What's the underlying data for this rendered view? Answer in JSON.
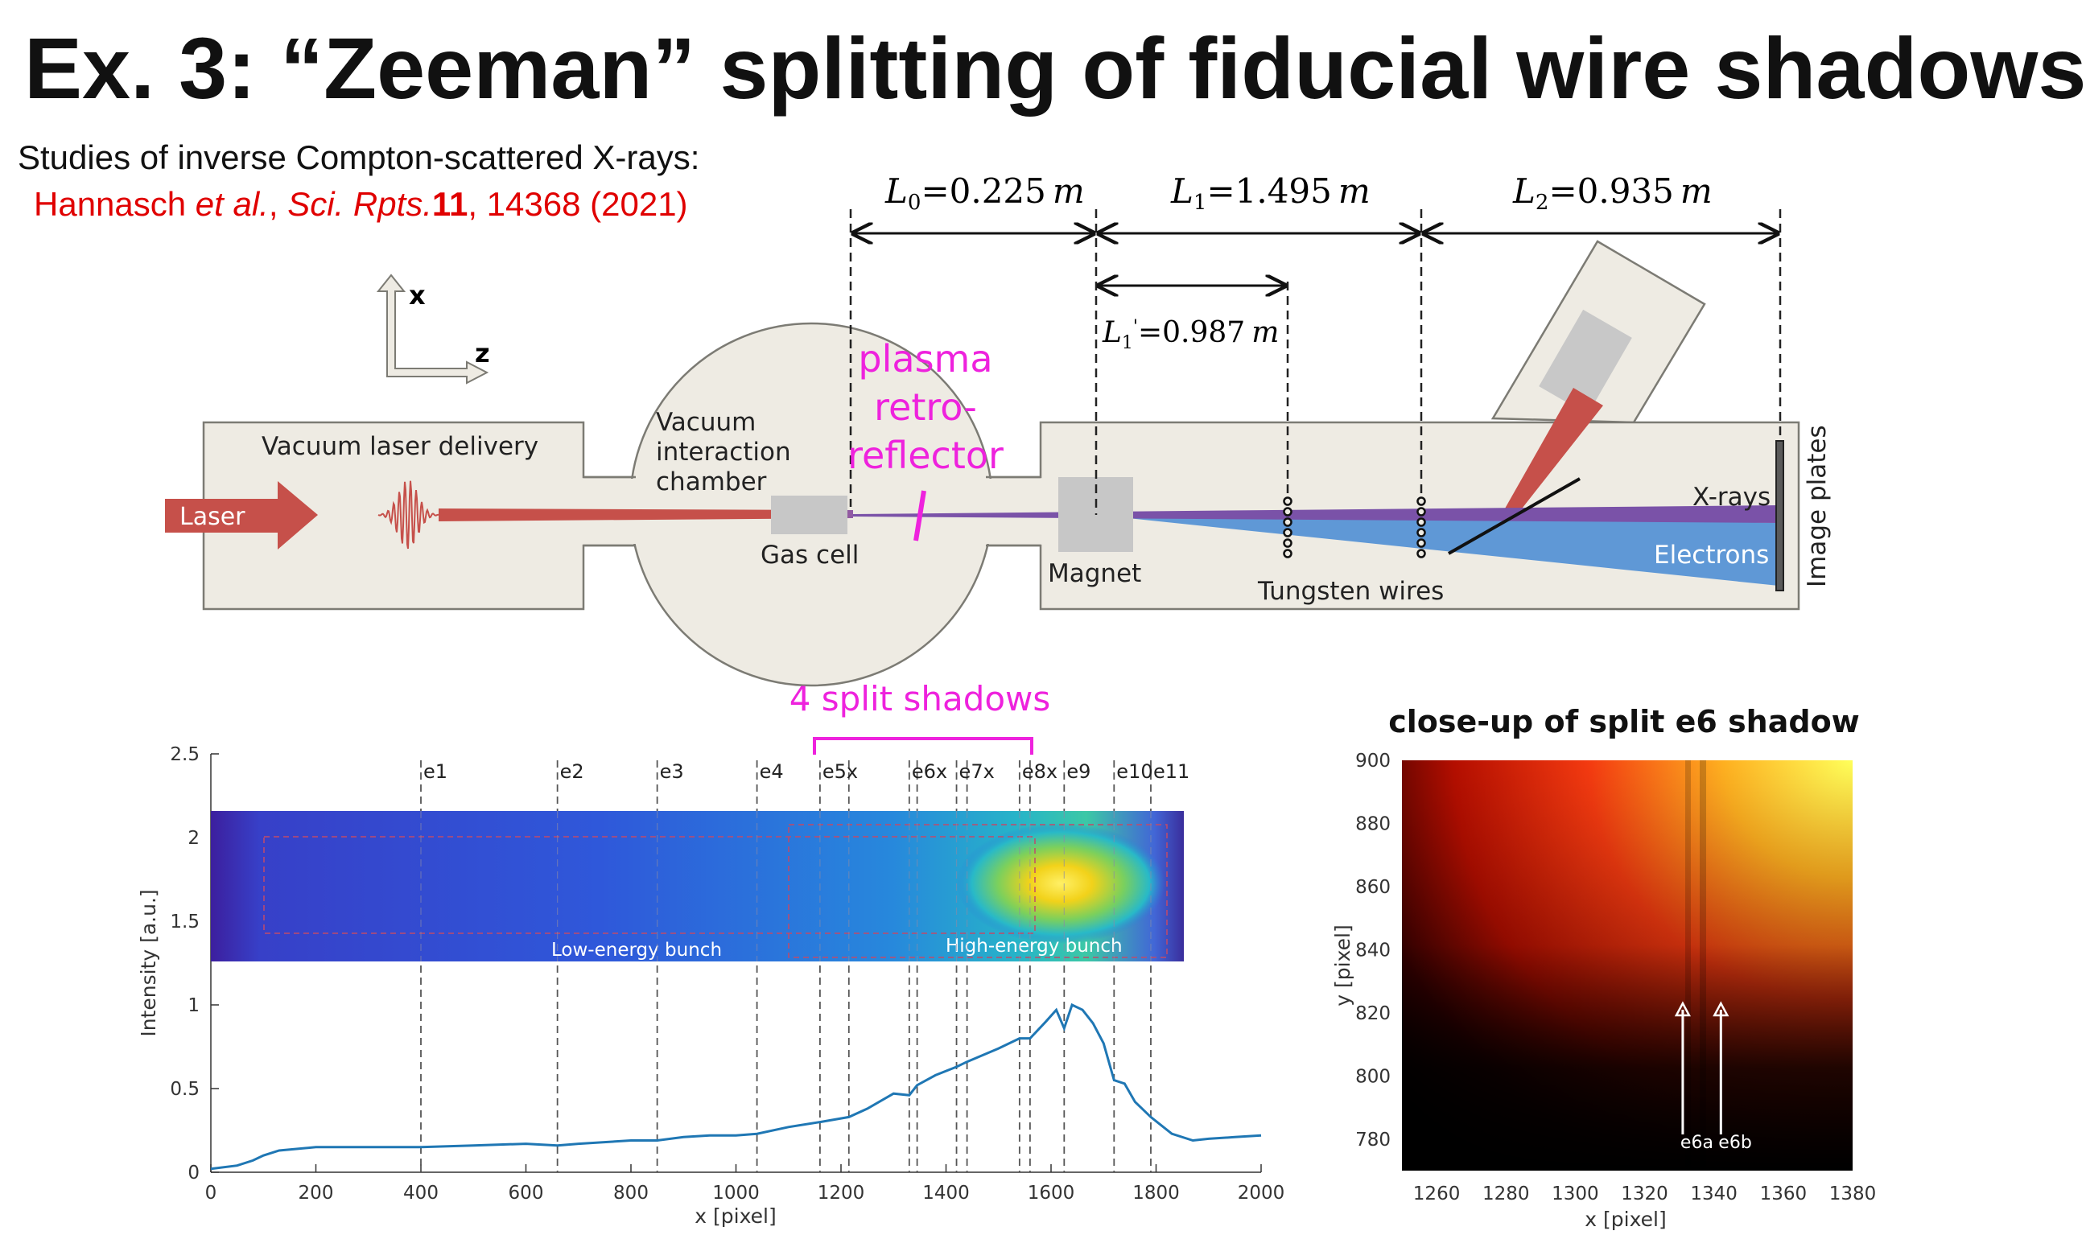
{
  "slide": {
    "title": "Ex. 3: “Zeeman” splitting of fiducial wire shadows",
    "intro": "Studies of inverse Compton-scattered X-rays:",
    "citation": {
      "authors": "Hannasch",
      "etal": "et al.",
      "comma": ",",
      "journal": "Sci. Rpts.",
      "volume": "11",
      "rest": ", 14368 (2021)"
    }
  },
  "setup": {
    "distances": {
      "L0": "=0.225",
      "L1": "=1.495",
      "L2": "=0.935",
      "L1prime": "=0.987",
      "unit": "m"
    },
    "axes": {
      "x": "x",
      "z": "z"
    },
    "labels": {
      "laser": "Laser",
      "vacuum_delivery": "Vacuum laser delivery",
      "chamber_line1": "Vacuum",
      "chamber_line2": "interaction",
      "chamber_line3": "chamber",
      "gas_cell": "Gas cell",
      "magnet": "Magnet",
      "tungsten_wires": "Tungsten wires",
      "xrays": "X-rays",
      "electrons": "Electrons",
      "image_plates": "Image plates"
    },
    "annotation": {
      "line1": "plasma",
      "line2": "retro-",
      "line3": "reflector"
    },
    "colors": {
      "magenta": "#ee22dd",
      "laser": "#c6504a",
      "electrons": "#5f98d6",
      "xrays": "#7a52a8",
      "housing": "#eeebe3"
    }
  },
  "split_annotation": "4 split shadows",
  "chart_data": [
    {
      "type": "line",
      "title": "",
      "xlabel": "x [pixel]",
      "ylabel": "Intensity [a.u.]",
      "xlim": [
        0,
        2000
      ],
      "ylim": [
        0,
        2.5
      ],
      "x_ticks": [
        "0",
        "200",
        "400",
        "600",
        "800",
        "1000",
        "1200",
        "1400",
        "1600",
        "1800",
        "2000"
      ],
      "y_ticks": [
        "0",
        "0.5",
        "1",
        "1.5",
        "2",
        "2.5"
      ],
      "markers": [
        {
          "label": "e1",
          "x": 400
        },
        {
          "label": "e2",
          "x": 660
        },
        {
          "label": "e3",
          "x": 850
        },
        {
          "label": "e4",
          "x": 1040
        },
        {
          "label": "e5x",
          "x": 1160
        },
        {
          "label": "",
          "x": 1215
        },
        {
          "label": "e6x",
          "x": 1330
        },
        {
          "label": "",
          "x": 1345
        },
        {
          "label": "e7x",
          "x": 1420
        },
        {
          "label": "",
          "x": 1440
        },
        {
          "label": "e8x",
          "x": 1540
        },
        {
          "label": "",
          "x": 1560
        },
        {
          "label": "e9",
          "x": 1625
        },
        {
          "label": "e10",
          "x": 1720
        },
        {
          "label": "e11",
          "x": 1790
        }
      ],
      "series": [
        {
          "x": [
            0,
            50,
            80,
            100,
            130,
            200,
            300,
            400,
            500,
            600,
            660,
            700,
            800,
            850,
            900,
            950,
            1000,
            1040,
            1100,
            1160,
            1215,
            1250,
            1300,
            1330,
            1345,
            1380,
            1420,
            1440,
            1500,
            1540,
            1560,
            1590,
            1610,
            1625,
            1640,
            1660,
            1680,
            1700,
            1720,
            1740,
            1760,
            1790,
            1830,
            1870,
            1900,
            1950,
            2000
          ],
          "y": [
            0.02,
            0.04,
            0.07,
            0.1,
            0.13,
            0.15,
            0.15,
            0.15,
            0.16,
            0.17,
            0.16,
            0.17,
            0.19,
            0.19,
            0.21,
            0.22,
            0.22,
            0.23,
            0.27,
            0.3,
            0.33,
            0.38,
            0.47,
            0.46,
            0.52,
            0.58,
            0.63,
            0.66,
            0.74,
            0.8,
            0.8,
            0.9,
            0.97,
            0.86,
            1.0,
            0.97,
            0.89,
            0.77,
            0.55,
            0.53,
            0.42,
            0.33,
            0.23,
            0.19,
            0.2,
            0.21,
            0.22
          ]
        }
      ],
      "image_labels": {
        "low": "Low-energy bunch",
        "high": "High-energy bunch"
      }
    },
    {
      "type": "heatmap",
      "title": "close-up of split e6 shadow",
      "xlabel": "x [pixel]",
      "ylabel": "y [pixel]",
      "xlim": [
        1250,
        1380
      ],
      "ylim": [
        770,
        900
      ],
      "x_ticks": [
        "1260",
        "1280",
        "1300",
        "1320",
        "1340",
        "1360",
        "1380"
      ],
      "y_ticks": [
        "780",
        "800",
        "820",
        "840",
        "860",
        "880",
        "900"
      ],
      "arrows": [
        {
          "label": "e6a",
          "x": 1331
        },
        {
          "label": "e6b",
          "x": 1342
        }
      ]
    }
  ]
}
